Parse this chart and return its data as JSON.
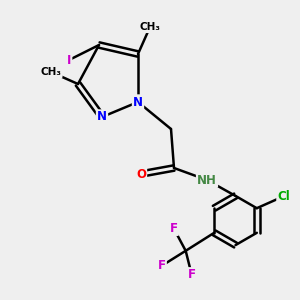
{
  "background_color": "#efefef",
  "colors": {
    "C": "#000000",
    "N": "#0000ff",
    "O": "#ff0000",
    "I": "#cc00cc",
    "Cl": "#00aa00",
    "F": "#cc00cc",
    "NH": "#448844",
    "bond": "#000000"
  }
}
